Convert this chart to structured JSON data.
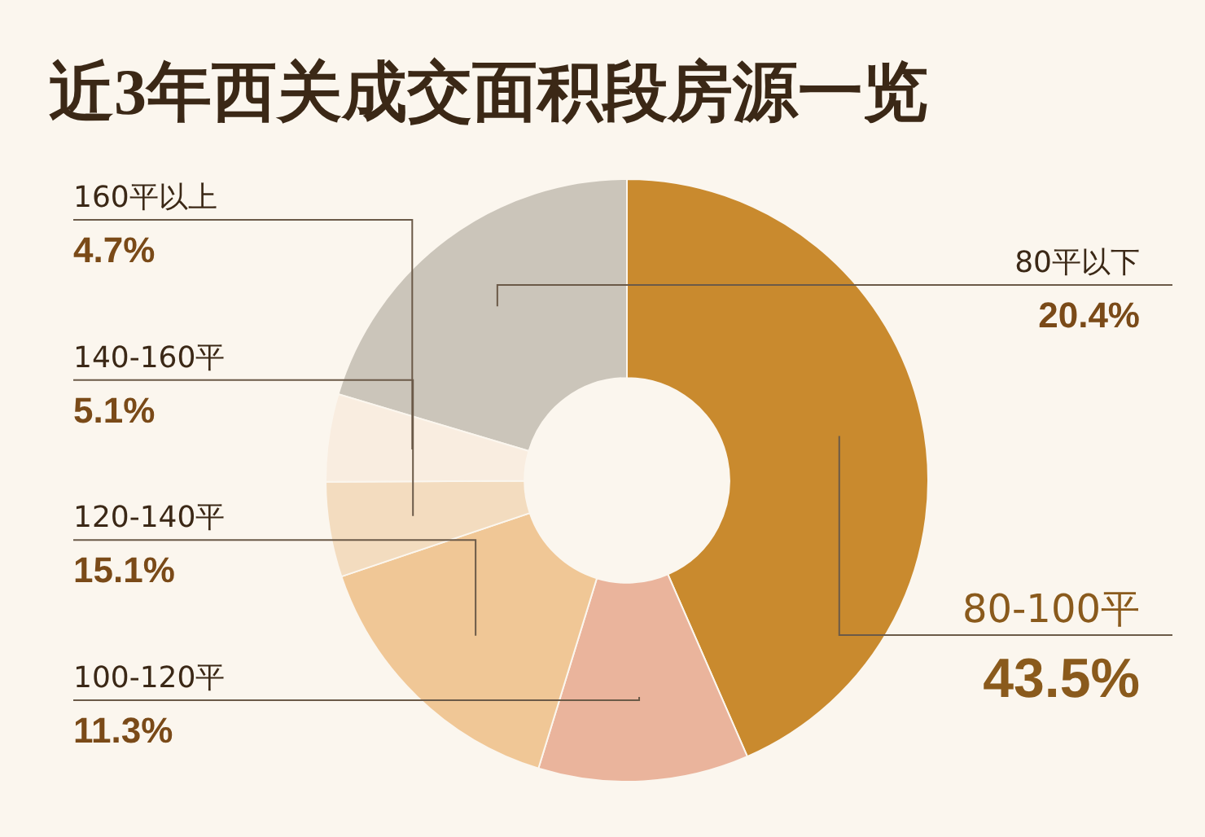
{
  "chart_data": {
    "type": "donut",
    "title": "近3年西关成交面积段房源一览",
    "categories": [
      "80平以下",
      "80-100平",
      "100-120平",
      "120-140平",
      "140-160平",
      "160平以上"
    ],
    "values": [
      20.4,
      43.5,
      11.3,
      15.1,
      5.1,
      4.7
    ],
    "colors": [
      "#cbc5ba",
      "#c98a2e",
      "#eab49c",
      "#f0c796",
      "#f3dcbf",
      "#f9ede0"
    ],
    "value_labels": [
      "20.4%",
      "43.5%",
      "11.3%",
      "15.1%",
      "5.1%",
      "4.7%"
    ]
  }
}
